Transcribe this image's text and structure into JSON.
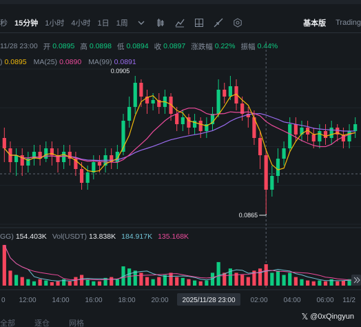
{
  "toolbar": {
    "items": [
      "秒",
      "15分钟",
      "1小时",
      "4小时",
      "1日",
      "1周"
    ],
    "active": "15分钟",
    "icons": [
      "chevron-down-icon",
      "candle-settings-icon",
      "indicator-icon",
      "drawing-icon",
      "layout-icon",
      "settings-icon"
    ],
    "views": [
      "基本版",
      "Trading"
    ]
  },
  "ohlc": {
    "date": "11/28 23:00",
    "open_label": "开",
    "open": "0.0895",
    "high_label": "高",
    "high": "0.0898",
    "low_label": "低",
    "low": "0.0894",
    "close_label": "收",
    "close": "0.0897",
    "change_label": "涨跌幅",
    "change": "0.22%",
    "amp_label": "振幅",
    "amp": "0.44%"
  },
  "ma": {
    "ma7_value": "0.0895",
    "ma25_label": "MA(25)",
    "ma25_value": "0.0890",
    "ma99_label": "MA(99)",
    "ma99_value": "0.0891"
  },
  "volume": {
    "vol_base_suffix": "GG)",
    "vol_base": "154.403K",
    "vol_quote_label": "Vol(USDT)",
    "vol_quote": "13.838K",
    "vol_ma1": "184.917K",
    "vol_ma2": "135.168K"
  },
  "annotations": {
    "high_marker": "0.0905",
    "low_marker": "0.0865"
  },
  "time_axis": [
    "0",
    "12:00",
    "14:00",
    "16:00",
    "18:00",
    "20:00",
    "2025/11/28 23:00",
    "02:00",
    "04:00",
    "06:00",
    "11/2"
  ],
  "bottom_tabs": [
    "全部",
    "逐仓",
    "网格"
  ],
  "watermark": "@0xQingyun",
  "colors": {
    "up": "#0ecb81",
    "down": "#f6465d",
    "ma7": "#f0b90b",
    "ma25": "#eb4b9b",
    "ma99": "#9b6cf0",
    "bg": "#161a1e"
  },
  "candles": [
    [
      0.0887,
      0.0884,
      0.089,
      0.088
    ],
    [
      0.0884,
      0.088,
      0.0886,
      0.0877
    ],
    [
      0.088,
      0.0882,
      0.0884,
      0.0876
    ],
    [
      0.0882,
      0.0879,
      0.0884,
      0.0876
    ],
    [
      0.0879,
      0.0881,
      0.0883,
      0.0877
    ],
    [
      0.0881,
      0.0883,
      0.0885,
      0.0879
    ],
    [
      0.0883,
      0.0881,
      0.0885,
      0.0879
    ],
    [
      0.0881,
      0.0884,
      0.0886,
      0.088
    ],
    [
      0.0884,
      0.0882,
      0.0886,
      0.0879
    ],
    [
      0.0882,
      0.088,
      0.0884,
      0.0877
    ],
    [
      0.088,
      0.0883,
      0.0885,
      0.0878
    ],
    [
      0.0883,
      0.0881,
      0.0885,
      0.0879
    ],
    [
      0.0881,
      0.0878,
      0.0883,
      0.0876
    ],
    [
      0.0878,
      0.0874,
      0.088,
      0.0872
    ],
    [
      0.0874,
      0.0877,
      0.0879,
      0.0872
    ],
    [
      0.0877,
      0.088,
      0.0882,
      0.0875
    ],
    [
      0.088,
      0.0879,
      0.0882,
      0.0877
    ],
    [
      0.0879,
      0.0882,
      0.0884,
      0.0877
    ],
    [
      0.0882,
      0.088,
      0.0884,
      0.0878
    ],
    [
      0.088,
      0.0883,
      0.0885,
      0.0878
    ],
    [
      0.0883,
      0.0892,
      0.0894,
      0.0882
    ],
    [
      0.0892,
      0.0896,
      0.0899,
      0.089
    ],
    [
      0.0896,
      0.0903,
      0.0905,
      0.0894
    ],
    [
      0.0903,
      0.0899,
      0.0904,
      0.0896
    ],
    [
      0.0899,
      0.0897,
      0.0901,
      0.0894
    ],
    [
      0.0897,
      0.0898,
      0.09,
      0.0895
    ],
    [
      0.0898,
      0.0896,
      0.09,
      0.0894
    ],
    [
      0.0896,
      0.0899,
      0.0901,
      0.0894
    ],
    [
      0.0899,
      0.0894,
      0.09,
      0.0892
    ],
    [
      0.0894,
      0.0891,
      0.0896,
      0.0889
    ],
    [
      0.0891,
      0.0893,
      0.0895,
      0.0889
    ],
    [
      0.0893,
      0.089,
      0.0894,
      0.0888
    ],
    [
      0.089,
      0.0892,
      0.0894,
      0.0888
    ],
    [
      0.0892,
      0.0889,
      0.0893,
      0.0887
    ],
    [
      0.0889,
      0.0891,
      0.0893,
      0.0887
    ],
    [
      0.0891,
      0.0894,
      0.0896,
      0.0889
    ],
    [
      0.0894,
      0.0901,
      0.0904,
      0.0893
    ],
    [
      0.0901,
      0.0899,
      0.0903,
      0.0897
    ],
    [
      0.0899,
      0.0902,
      0.0905,
      0.0898
    ],
    [
      0.0902,
      0.0897,
      0.0904,
      0.0895
    ],
    [
      0.0897,
      0.0894,
      0.0899,
      0.0892
    ],
    [
      0.0894,
      0.0893,
      0.0896,
      0.089
    ],
    [
      0.0893,
      0.0887,
      0.0895,
      0.0885
    ],
    [
      0.0887,
      0.0882,
      0.0889,
      0.0878
    ],
    [
      0.0882,
      0.0872,
      0.0884,
      0.0865
    ],
    [
      0.0872,
      0.0876,
      0.0879,
      0.087
    ],
    [
      0.0876,
      0.0881,
      0.0884,
      0.0874
    ],
    [
      0.0881,
      0.0884,
      0.0886,
      0.0879
    ],
    [
      0.0884,
      0.0891,
      0.0893,
      0.0883
    ],
    [
      0.0891,
      0.0888,
      0.0893,
      0.0886
    ],
    [
      0.0888,
      0.089,
      0.0892,
      0.0886
    ],
    [
      0.089,
      0.0888,
      0.0892,
      0.0886
    ],
    [
      0.0888,
      0.0886,
      0.089,
      0.0884
    ],
    [
      0.0886,
      0.0889,
      0.0891,
      0.0884
    ],
    [
      0.0889,
      0.0887,
      0.0891,
      0.0885
    ],
    [
      0.0887,
      0.089,
      0.0892,
      0.0885
    ],
    [
      0.089,
      0.0888,
      0.0891,
      0.0886
    ],
    [
      0.0888,
      0.0886,
      0.089,
      0.0884
    ],
    [
      0.0886,
      0.0889,
      0.0891,
      0.0884
    ],
    [
      0.0889,
      0.0891,
      0.0893,
      0.0887
    ]
  ],
  "volumes": [
    [
      0.95,
      "d"
    ],
    [
      0.35,
      "d"
    ],
    [
      0.25,
      "u"
    ],
    [
      0.2,
      "d"
    ],
    [
      0.15,
      "u"
    ],
    [
      0.1,
      "u"
    ],
    [
      0.15,
      "d"
    ],
    [
      0.12,
      "u"
    ],
    [
      0.08,
      "d"
    ],
    [
      0.1,
      "d"
    ],
    [
      0.15,
      "u"
    ],
    [
      0.1,
      "d"
    ],
    [
      0.2,
      "d"
    ],
    [
      0.25,
      "d"
    ],
    [
      0.15,
      "u"
    ],
    [
      0.1,
      "u"
    ],
    [
      0.1,
      "d"
    ],
    [
      0.18,
      "u"
    ],
    [
      0.2,
      "d"
    ],
    [
      0.15,
      "u"
    ],
    [
      0.45,
      "u"
    ],
    [
      0.4,
      "u"
    ],
    [
      0.35,
      "u"
    ],
    [
      0.3,
      "d"
    ],
    [
      0.2,
      "d"
    ],
    [
      0.15,
      "u"
    ],
    [
      0.2,
      "d"
    ],
    [
      0.25,
      "u"
    ],
    [
      0.3,
      "d"
    ],
    [
      0.2,
      "d"
    ],
    [
      0.18,
      "u"
    ],
    [
      0.15,
      "d"
    ],
    [
      0.12,
      "u"
    ],
    [
      0.1,
      "d"
    ],
    [
      0.12,
      "u"
    ],
    [
      0.3,
      "u"
    ],
    [
      0.55,
      "u"
    ],
    [
      0.3,
      "d"
    ],
    [
      0.4,
      "u"
    ],
    [
      0.3,
      "d"
    ],
    [
      0.25,
      "d"
    ],
    [
      0.2,
      "d"
    ],
    [
      0.35,
      "d"
    ],
    [
      0.4,
      "d"
    ],
    [
      0.5,
      "d"
    ],
    [
      0.3,
      "u"
    ],
    [
      0.35,
      "u"
    ],
    [
      0.25,
      "u"
    ],
    [
      0.3,
      "u"
    ],
    [
      0.2,
      "d"
    ],
    [
      0.15,
      "u"
    ],
    [
      0.12,
      "d"
    ],
    [
      0.1,
      "d"
    ],
    [
      0.12,
      "u"
    ],
    [
      0.1,
      "d"
    ],
    [
      0.15,
      "u"
    ],
    [
      0.1,
      "d"
    ],
    [
      0.12,
      "d"
    ],
    [
      0.15,
      "u"
    ],
    [
      0.12,
      "u"
    ]
  ]
}
